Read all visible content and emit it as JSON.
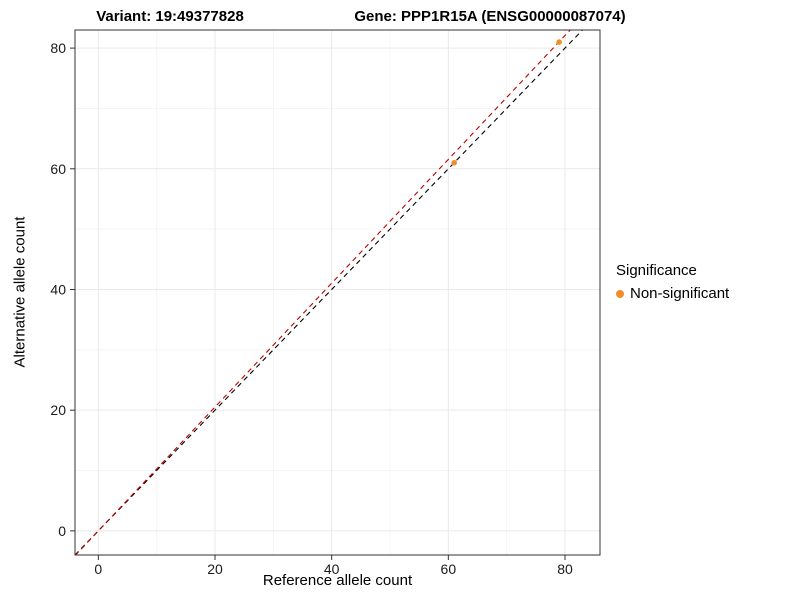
{
  "titles": {
    "variant": "Variant: 19:49377828",
    "gene": "Gene: PPP1R15A (ENSG00000087074)"
  },
  "legend": {
    "title": "Significance",
    "items": [
      {
        "label": "Non-significant",
        "color": "#F28C28"
      }
    ]
  },
  "chart_data": {
    "type": "scatter",
    "title": "Variant: 19:49377828 / Gene: PPP1R15A (ENSG00000087074)",
    "xlabel": "Reference allele count",
    "ylabel": "Alternative allele count",
    "xlim": [
      -4,
      86
    ],
    "ylim": [
      -4,
      83
    ],
    "xticks": [
      0,
      20,
      40,
      60,
      80
    ],
    "yticks": [
      0,
      20,
      40,
      60,
      80
    ],
    "minor_xticks": [
      10,
      30,
      50,
      70
    ],
    "minor_yticks": [
      10,
      30,
      50,
      70
    ],
    "grid": true,
    "legend_position": "right",
    "series": [
      {
        "name": "Non-significant",
        "color": "#F28C28",
        "points": [
          {
            "x": 61,
            "y": 61
          },
          {
            "x": 79,
            "y": 81
          }
        ]
      }
    ],
    "lines": [
      {
        "name": "identity-line",
        "color": "#000000",
        "dashed": true,
        "slope": 1.0,
        "intercept": 0
      },
      {
        "name": "fitted-line",
        "color": "#BB0000",
        "dashed": true,
        "slope": 1.026,
        "intercept": 0
      }
    ],
    "panel": {
      "border_color": "#333333",
      "major_grid_color": "#e9e9e9",
      "minor_grid_color": "#f5f5f5"
    }
  }
}
